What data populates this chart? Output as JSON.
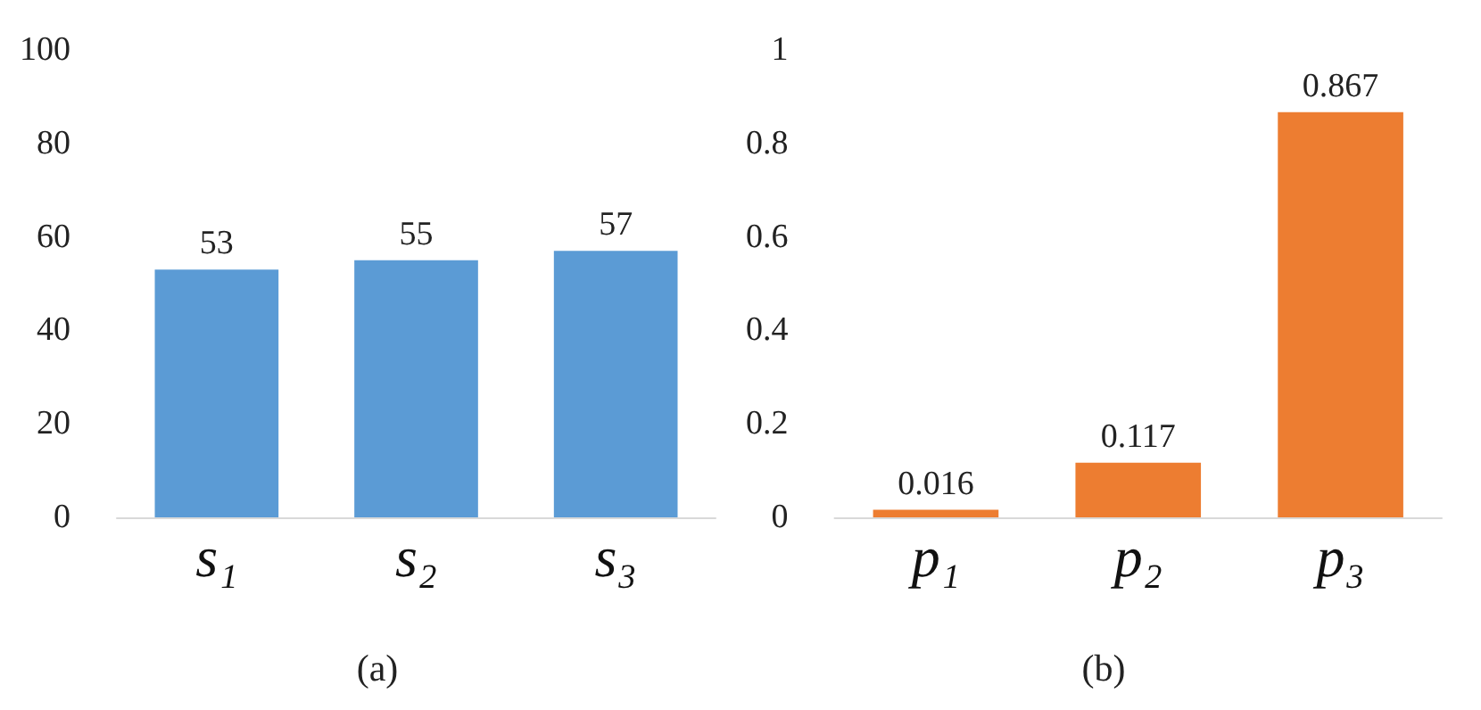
{
  "chart_data": [
    {
      "type": "bar",
      "categories": [
        "s₁",
        "s₂",
        "s₃"
      ],
      "values": [
        53,
        55,
        57
      ],
      "color": "#5b9bd5",
      "ylim": [
        0,
        100
      ],
      "yticks": [
        0,
        20,
        40,
        60,
        80,
        100
      ],
      "grid": false,
      "data_labels": true,
      "xlabel": "(a)"
    },
    {
      "type": "bar",
      "categories": [
        "p₁",
        "p₂",
        "p₃"
      ],
      "values": [
        0.016,
        0.117,
        0.867
      ],
      "color": "#ed7d31",
      "ylim": [
        0,
        1
      ],
      "yticks": [
        0,
        0.2,
        0.4,
        0.6,
        0.8,
        1
      ],
      "grid": false,
      "data_labels": true,
      "xlabel": "(b)"
    }
  ]
}
